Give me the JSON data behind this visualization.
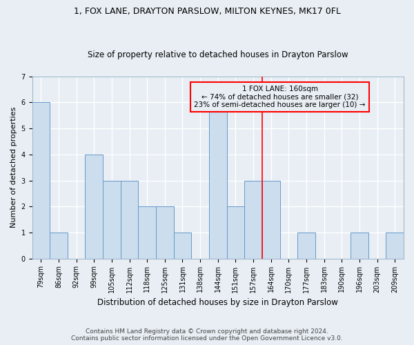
{
  "title": "1, FOX LANE, DRAYTON PARSLOW, MILTON KEYNES, MK17 0FL",
  "subtitle": "Size of property relative to detached houses in Drayton Parslow",
  "xlabel": "Distribution of detached houses by size in Drayton Parslow",
  "ylabel": "Number of detached properties",
  "bar_labels": [
    "79sqm",
    "86sqm",
    "92sqm",
    "99sqm",
    "105sqm",
    "112sqm",
    "118sqm",
    "125sqm",
    "131sqm",
    "138sqm",
    "144sqm",
    "151sqm",
    "157sqm",
    "164sqm",
    "170sqm",
    "177sqm",
    "183sqm",
    "190sqm",
    "196sqm",
    "203sqm",
    "209sqm"
  ],
  "bar_values": [
    6,
    1,
    0,
    4,
    3,
    3,
    2,
    2,
    1,
    0,
    6,
    2,
    3,
    3,
    0,
    1,
    0,
    0,
    1,
    0,
    1
  ],
  "bar_color": "#ccdded",
  "bar_edgecolor": "#6699cc",
  "ref_line_x": 12.5,
  "ref_line_label": "1 FOX LANE: 160sqm",
  "annotation_line1": "← 74% of detached houses are smaller (32)",
  "annotation_line2": "23% of semi-detached houses are larger (10) →",
  "ylim": [
    0,
    7
  ],
  "yticks": [
    0,
    1,
    2,
    3,
    4,
    5,
    6,
    7
  ],
  "footnote1": "Contains HM Land Registry data © Crown copyright and database right 2024.",
  "footnote2": "Contains public sector information licensed under the Open Government Licence v3.0.",
  "background_color": "#e8eef4",
  "grid_color": "#ffffff",
  "spine_color": "#a0b8cc",
  "title_fontsize": 9,
  "subtitle_fontsize": 8.5,
  "ylabel_fontsize": 8,
  "xlabel_fontsize": 8.5,
  "tick_fontsize": 7,
  "annot_fontsize": 7.5,
  "footnote_fontsize": 6.5
}
